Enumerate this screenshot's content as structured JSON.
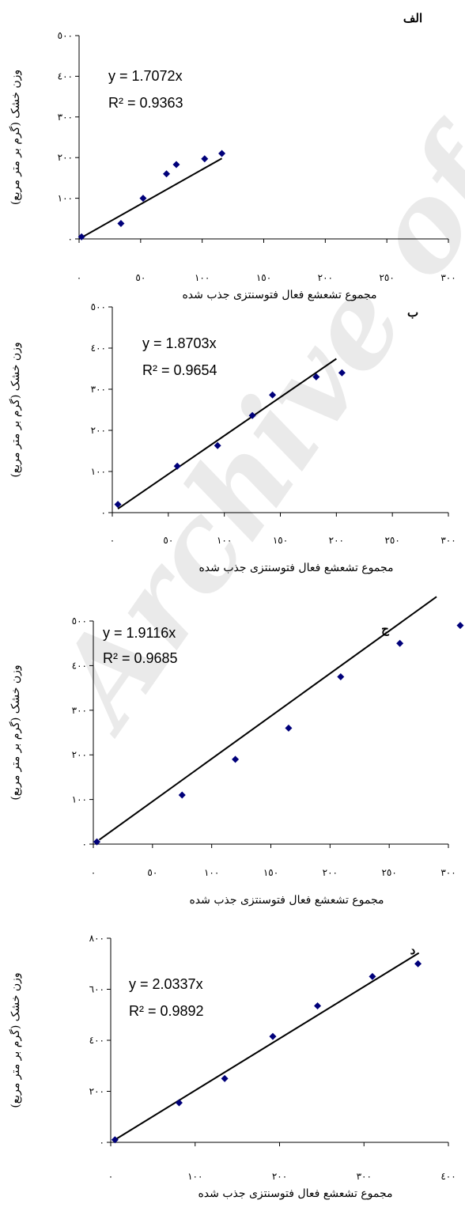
{
  "watermark": "Archive of SID",
  "chart_data": [
    {
      "type": "scatter",
      "panel_label": "الف",
      "equation": "y = 1.7072x",
      "r2": "R² = 0.9363",
      "slope": 1.7072,
      "xlabel": "مجموع تشعشع فعال فتوسنتزی جذب شده",
      "ylabel": "وزن خشک (گرم بر متر مربع)",
      "xlim": [
        0,
        300
      ],
      "ylim": [
        0,
        500
      ],
      "xticks": [
        0,
        50,
        100,
        150,
        200,
        250,
        300
      ],
      "yticks": [
        0,
        100,
        200,
        300,
        400,
        500
      ],
      "xtick_labels": [
        "٠",
        "٥٠",
        "١٠٠",
        "١٥٠",
        "٢٠٠",
        "٢٥٠",
        "٣٠٠"
      ],
      "ytick_labels": [
        "٠",
        "١٠٠",
        "٢٠٠",
        "٣٠٠",
        "٤٠٠",
        "٥٠٠"
      ],
      "series": [
        {
          "x": [
            2,
            34,
            52,
            71,
            79,
            102,
            116
          ],
          "y": [
            5,
            38,
            100,
            160,
            183,
            197,
            210
          ]
        }
      ],
      "line_x": [
        0,
        116
      ]
    },
    {
      "type": "scatter",
      "panel_label": "ب",
      "equation": "y = 1.8703x",
      "r2": "R² = 0.9654",
      "slope": 1.8703,
      "xlabel": "مجموع تشعشع فعال فتوسنتزی جذب شده",
      "ylabel": "وزن خشک (گرم بر متر مربع)",
      "xlim": [
        0,
        300
      ],
      "ylim": [
        0,
        500
      ],
      "xticks": [
        0,
        50,
        100,
        150,
        200,
        250,
        300
      ],
      "yticks": [
        0,
        100,
        200,
        300,
        400,
        500
      ],
      "xtick_labels": [
        "٠",
        "٥٠",
        "١٠٠",
        "١٥٠",
        "٢٠٠",
        "٢٥٠",
        "٣٠٠"
      ],
      "ytick_labels": [
        "٠",
        "١٠٠",
        "٢٠٠",
        "٣٠٠",
        "٤٠٠",
        "٥٠٠"
      ],
      "series": [
        {
          "x": [
            5,
            58,
            94,
            125,
            143,
            182,
            205
          ],
          "y": [
            20,
            113,
            163,
            236,
            286,
            330,
            340
          ]
        }
      ],
      "line_x": [
        5,
        200
      ]
    },
    {
      "type": "scatter",
      "panel_label": "ج",
      "equation": "y = 1.9116x",
      "r2": "R² = 0.9685",
      "slope": 1.9116,
      "xlabel": "مجموع تشعشع فعال فتوسنتزی جذب شده",
      "ylabel": "وزن خشک (گرم بر متر مربع)",
      "xlim": [
        0,
        300
      ],
      "ylim": [
        0,
        500
      ],
      "xticks": [
        0,
        50,
        100,
        150,
        200,
        250,
        300
      ],
      "yticks": [
        0,
        100,
        200,
        300,
        400,
        500
      ],
      "xtick_labels": [
        "٠",
        "٥٠",
        "١٠٠",
        "١٥٠",
        "٢٠٠",
        "٢٥٠",
        "٣٠٠"
      ],
      "ytick_labels": [
        "٠",
        "١٠٠",
        "٢٠٠",
        "٣٠٠",
        "٤٠٠",
        "٥٠٠"
      ],
      "series": [
        {
          "x": [
            3,
            75,
            120,
            165,
            209,
            259,
            310
          ],
          "y": [
            5,
            110,
            190,
            260,
            375,
            450,
            490
          ]
        }
      ],
      "line_x": [
        5,
        290
      ]
    },
    {
      "type": "scatter",
      "panel_label": "د",
      "equation": "y = 2.0337x",
      "r2": "R² = 0.9892",
      "slope": 2.0337,
      "xlabel": "مجموع تشعشع فعال فتوسنتزی جذب شده",
      "ylabel": "وزن خشک (گرم بر متر مربع)",
      "xlim": [
        0,
        400
      ],
      "ylim": [
        0,
        800
      ],
      "xticks": [
        0,
        100,
        200,
        300,
        400
      ],
      "yticks": [
        0,
        200,
        400,
        600,
        800
      ],
      "xtick_labels": [
        "٠",
        "١٠٠",
        "٢٠٠",
        "٣٠٠",
        "٤٠٠"
      ],
      "ytick_labels": [
        "٠",
        "٢٠٠",
        "٤٠٠",
        "٦٠٠",
        "٨٠٠"
      ],
      "series": [
        {
          "x": [
            5,
            81,
            135,
            192,
            245,
            310,
            364
          ],
          "y": [
            10,
            155,
            250,
            415,
            535,
            650,
            700
          ]
        }
      ],
      "line_x": [
        5,
        365
      ]
    }
  ]
}
